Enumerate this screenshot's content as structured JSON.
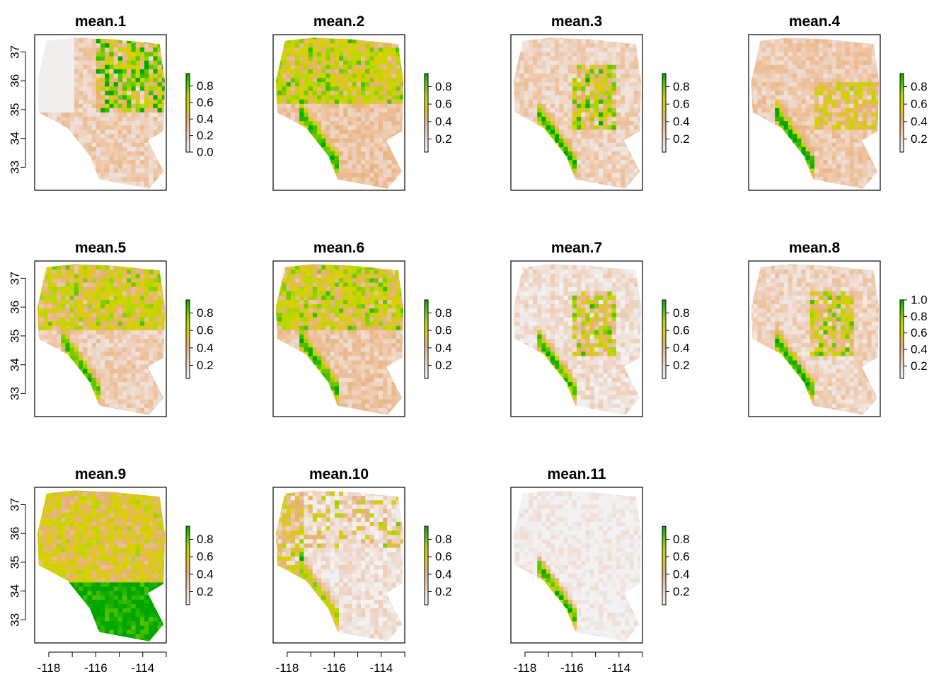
{
  "figure": {
    "background": "#ffffff",
    "color_ramp": [
      "#f2f2f2",
      "#eedcd2",
      "#eec39f",
      "#e6b07a",
      "#dcd000",
      "#b4d800",
      "#58c400",
      "#00a600"
    ]
  },
  "chart_data": [
    {
      "type": "heatmap",
      "title": "mean.1",
      "xlim": [
        -118.6,
        -113
      ],
      "ylim": [
        32.2,
        37.6
      ],
      "legend_ticks": [
        "0.0",
        "0.2",
        "0.4",
        "0.6",
        "0.8"
      ],
      "legend_range": [
        0,
        0.95
      ],
      "x_ticks": [],
      "y_ticks": [
        "33",
        "34",
        "35",
        "36",
        "37"
      ],
      "seed": 11,
      "pattern": "ne",
      "base": 0.22
    },
    {
      "type": "heatmap",
      "title": "mean.2",
      "xlim": [
        -118.6,
        -113
      ],
      "ylim": [
        32.2,
        37.6
      ],
      "legend_ticks": [
        "0.2",
        "0.4",
        "0.6",
        "0.8"
      ],
      "legend_range": [
        0.05,
        0.95
      ],
      "x_ticks": [],
      "y_ticks": [],
      "seed": 23,
      "pattern": "top",
      "base": 0.38
    },
    {
      "type": "heatmap",
      "title": "mean.3",
      "xlim": [
        -118.6,
        -113
      ],
      "ylim": [
        32.2,
        37.6
      ],
      "legend_ticks": [
        "0.2",
        "0.4",
        "0.6",
        "0.8"
      ],
      "legend_range": [
        0.05,
        0.95
      ],
      "x_ticks": [],
      "y_ticks": [],
      "seed": 37,
      "pattern": "center",
      "base": 0.2
    },
    {
      "type": "heatmap",
      "title": "mean.4",
      "xlim": [
        -118.6,
        -113
      ],
      "ylim": [
        32.2,
        37.6
      ],
      "legend_ticks": [
        "0.2",
        "0.4",
        "0.6",
        "0.8"
      ],
      "legend_range": [
        0.05,
        0.95
      ],
      "x_ticks": [],
      "y_ticks": [],
      "seed": 41,
      "pattern": "coast",
      "base": 0.24
    },
    {
      "type": "heatmap",
      "title": "mean.5",
      "xlim": [
        -118.6,
        -113
      ],
      "ylim": [
        32.2,
        37.6
      ],
      "legend_ticks": [
        "0.2",
        "0.4",
        "0.6",
        "0.8"
      ],
      "legend_range": [
        0.05,
        0.95
      ],
      "x_ticks": [],
      "y_ticks": [
        "33",
        "34",
        "35",
        "36",
        "37"
      ],
      "seed": 53,
      "pattern": "top",
      "base": 0.32
    },
    {
      "type": "heatmap",
      "title": "mean.6",
      "xlim": [
        -118.6,
        -113
      ],
      "ylim": [
        32.2,
        37.6
      ],
      "legend_ticks": [
        "0.2",
        "0.4",
        "0.6",
        "0.8"
      ],
      "legend_range": [
        0.05,
        0.95
      ],
      "x_ticks": [],
      "y_ticks": [],
      "seed": 67,
      "pattern": "top",
      "base": 0.36
    },
    {
      "type": "heatmap",
      "title": "mean.7",
      "xlim": [
        -118.6,
        -113
      ],
      "ylim": [
        32.2,
        37.6
      ],
      "legend_ticks": [
        "0.2",
        "0.4",
        "0.6",
        "0.8"
      ],
      "legend_range": [
        0.05,
        0.95
      ],
      "x_ticks": [],
      "y_ticks": [],
      "seed": 71,
      "pattern": "center",
      "base": 0.12
    },
    {
      "type": "heatmap",
      "title": "mean.8",
      "xlim": [
        -118.6,
        -113
      ],
      "ylim": [
        32.2,
        37.6
      ],
      "legend_ticks": [
        "0.2",
        "0.4",
        "0.6",
        "0.8",
        "1.0"
      ],
      "legend_range": [
        0.05,
        1.0
      ],
      "x_ticks": [],
      "y_ticks": [],
      "seed": 83,
      "pattern": "center",
      "base": 0.18
    },
    {
      "type": "heatmap",
      "title": "mean.9",
      "xlim": [
        -118.6,
        -113
      ],
      "ylim": [
        32.2,
        37.6
      ],
      "legend_ticks": [
        "0.2",
        "0.4",
        "0.6",
        "0.8"
      ],
      "legend_range": [
        0.05,
        0.95
      ],
      "x_ticks": [
        "-118",
        "-116",
        "-114"
      ],
      "y_ticks": [
        "33",
        "34",
        "35",
        "36",
        "37"
      ],
      "seed": 97,
      "pattern": "south",
      "base": 0.4
    },
    {
      "type": "heatmap",
      "title": "mean.10",
      "xlim": [
        -118.6,
        -113
      ],
      "ylim": [
        32.2,
        37.6
      ],
      "legend_ticks": [
        "0.2",
        "0.4",
        "0.6",
        "0.8"
      ],
      "legend_range": [
        0.05,
        0.95
      ],
      "x_ticks": [
        "-118",
        "-116",
        "-114"
      ],
      "y_ticks": [],
      "seed": 101,
      "pattern": "west",
      "base": 0.1
    },
    {
      "type": "heatmap",
      "title": "mean.11",
      "xlim": [
        -118.6,
        -113
      ],
      "ylim": [
        32.2,
        37.6
      ],
      "legend_ticks": [
        "0.2",
        "0.4",
        "0.6",
        "0.8"
      ],
      "legend_range": [
        0.05,
        0.95
      ],
      "x_ticks": [
        "-118",
        "-116",
        "-114"
      ],
      "y_ticks": [],
      "seed": 113,
      "pattern": "coastonly",
      "base": 0.02
    }
  ]
}
